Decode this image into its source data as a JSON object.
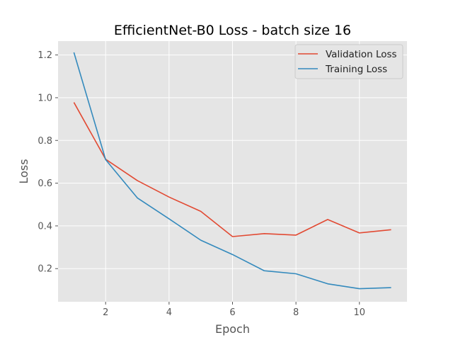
{
  "chart_data": {
    "type": "line",
    "title": "EfficientNet-B0 Loss - batch size 16",
    "xlabel": "Epoch",
    "ylabel": "Loss",
    "x": [
      1,
      2,
      3,
      4,
      5,
      6,
      7,
      8,
      9,
      10,
      11
    ],
    "xlim": [
      0.5,
      11.5
    ],
    "ylim": [
      0.045,
      1.265
    ],
    "xticks": [
      2,
      4,
      6,
      8,
      10
    ],
    "yticks": [
      0.2,
      0.4,
      0.6,
      0.8,
      1.0,
      1.2
    ],
    "ytick_labels": [
      "0.2",
      "0.4",
      "0.6",
      "0.8",
      "1.0",
      "1.2"
    ],
    "grid": true,
    "legend_position": "top-right",
    "series": [
      {
        "name": "Validation Loss",
        "color": "#E24A33",
        "values": [
          0.978,
          0.712,
          0.612,
          0.535,
          0.468,
          0.35,
          0.364,
          0.357,
          0.43,
          0.367,
          0.382
        ]
      },
      {
        "name": "Training Loss",
        "color": "#348ABD",
        "values": [
          1.212,
          0.71,
          0.531,
          0.433,
          0.333,
          0.266,
          0.19,
          0.176,
          0.129,
          0.106,
          0.111
        ]
      }
    ]
  }
}
